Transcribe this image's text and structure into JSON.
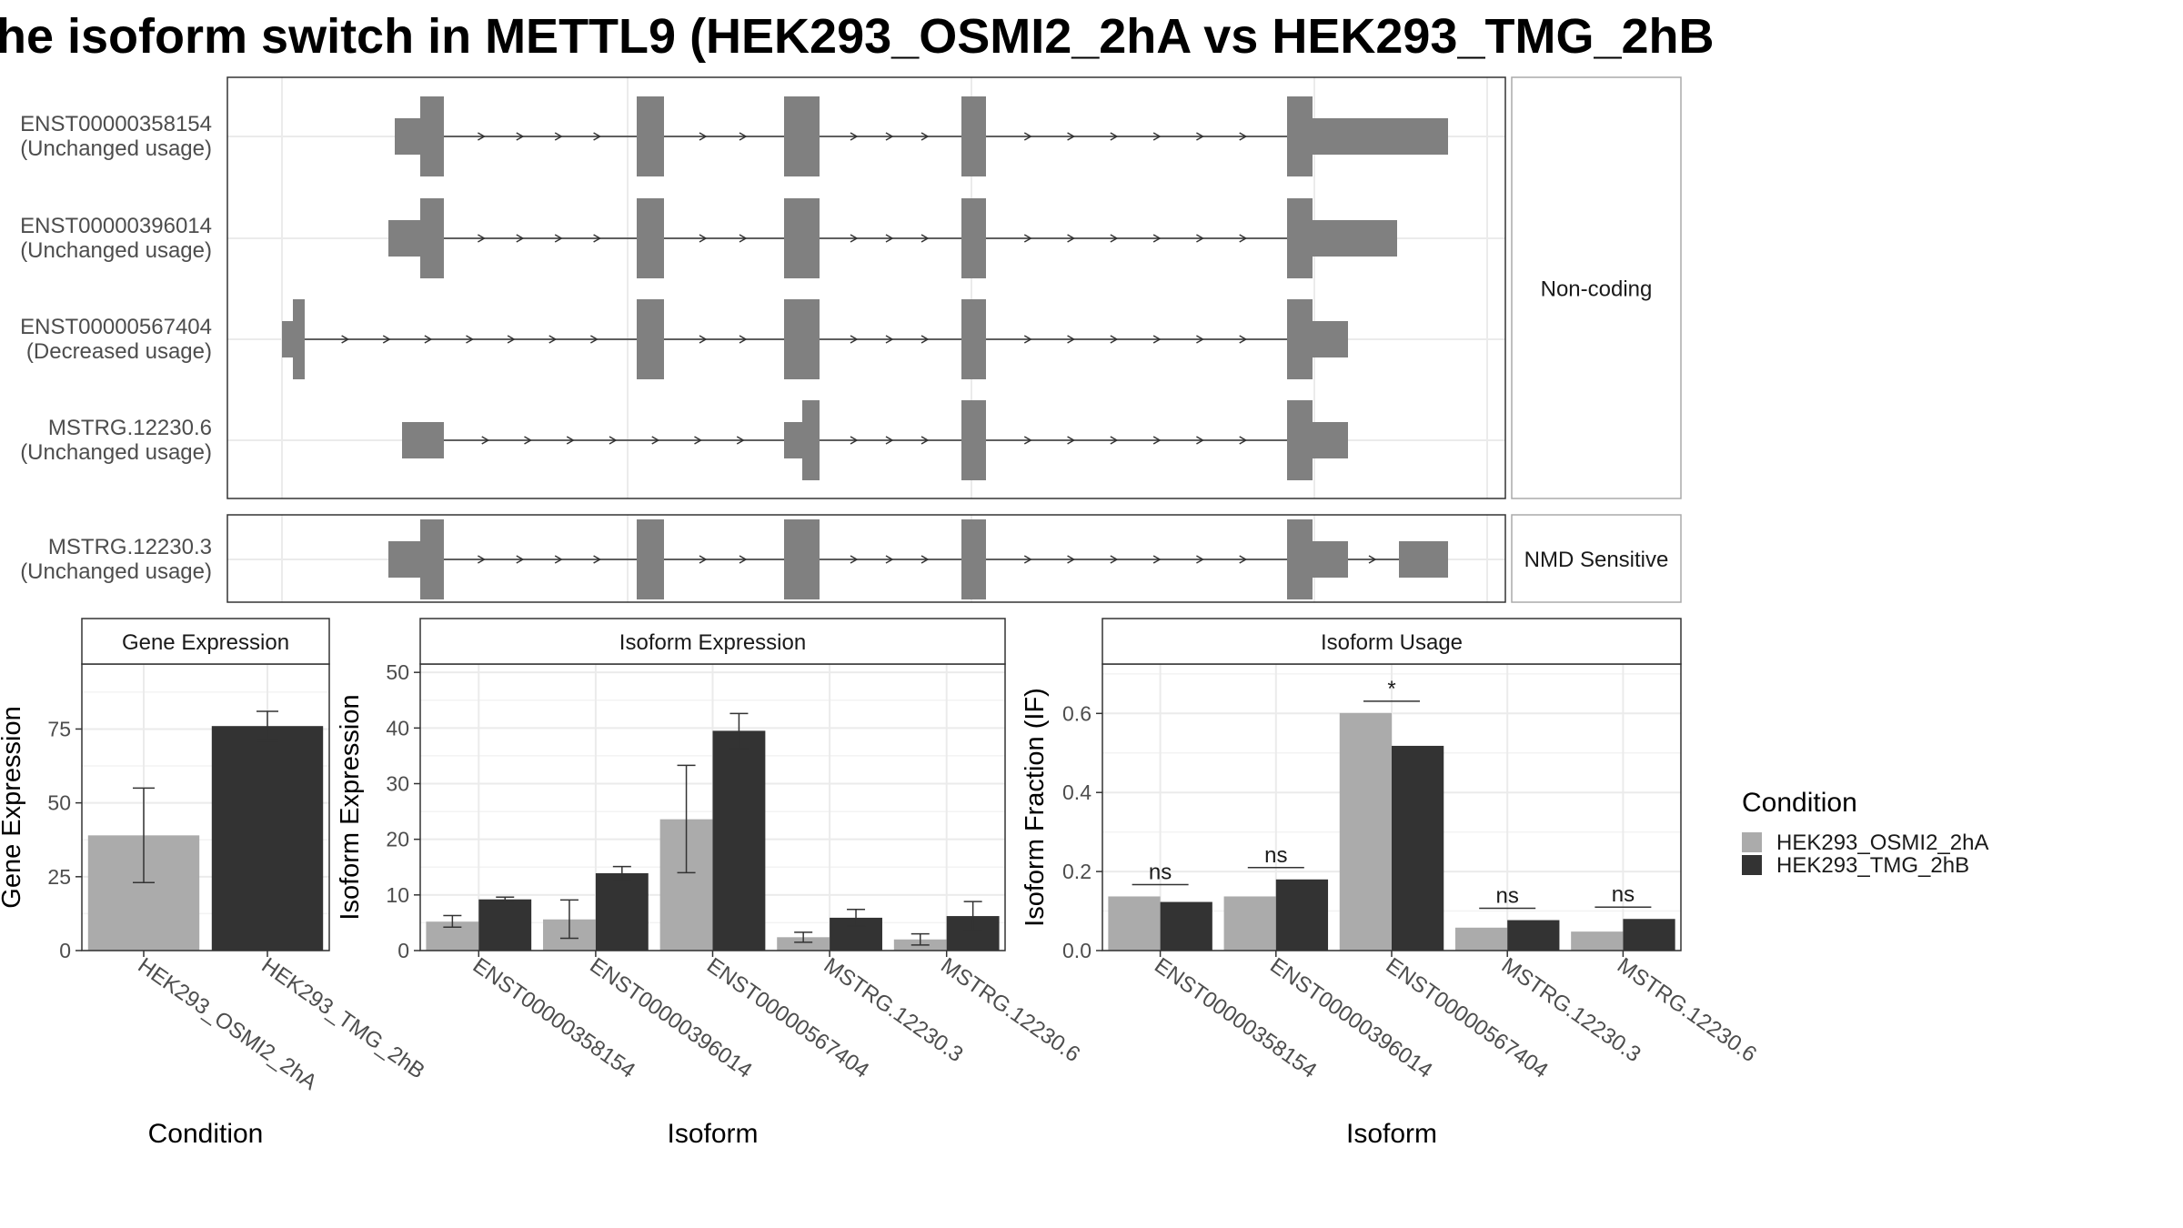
{
  "title": "he isoform switch in METTL9 (HEK293_OSMI2_2hA vs HEK293_TMG_2hB",
  "structure": {
    "facets": [
      "Non-coding",
      "NMD Sensitive"
    ],
    "transcripts": [
      {
        "id": "ENST00000358154",
        "usage": "(Unchanged usage)",
        "facet": 0
      },
      {
        "id": "ENST00000396014",
        "usage": "(Unchanged usage)",
        "facet": 0
      },
      {
        "id": "ENST00000567404",
        "usage": "(Decreased usage)",
        "facet": 0
      },
      {
        "id": "MSTRG.12230.6",
        "usage": "(Unchanged usage)",
        "facet": 0
      },
      {
        "id": "MSTRG.12230.3",
        "usage": "(Unchanged usage)",
        "facet": 1
      }
    ]
  },
  "chart_data": [
    {
      "type": "bar",
      "title": "Gene Expression",
      "xlabel": "Condition",
      "ylabel": "Gene Expression",
      "ylim": [
        0,
        97
      ],
      "yticks": [
        0,
        25,
        50,
        75
      ],
      "categories": [
        "HEK293_OSMI2_2hA",
        "HEK293_TMG_2hB"
      ],
      "values": [
        39,
        76
      ],
      "error_low": [
        23,
        71
      ],
      "error_high": [
        55,
        81
      ]
    },
    {
      "type": "bar",
      "title": "Isoform Expression",
      "xlabel": "Isoform",
      "ylabel": "Isoform Expression",
      "ylim": [
        0,
        51.5
      ],
      "yticks": [
        0,
        10,
        20,
        30,
        40,
        50
      ],
      "categories": [
        "ENST00000358154",
        "ENST00000396014",
        "ENST00000567404",
        "MSTRG.12230.3",
        "MSTRG.12230.6"
      ],
      "series": [
        {
          "name": "HEK293_OSMI2_2hA",
          "values": [
            5.2,
            5.6,
            23.6,
            2.4,
            2.0
          ],
          "error_low": [
            4.2,
            2.2,
            14.0,
            1.5,
            1.0
          ],
          "error_high": [
            6.3,
            9.1,
            33.3,
            3.3,
            3.0
          ]
        },
        {
          "name": "HEK293_TMG_2hB",
          "values": [
            9.2,
            13.9,
            39.5,
            5.9,
            6.2
          ],
          "error_low": [
            8.8,
            12.6,
            36.3,
            4.4,
            3.6
          ],
          "error_high": [
            9.6,
            15.1,
            42.6,
            7.4,
            8.8
          ]
        }
      ]
    },
    {
      "type": "bar",
      "title": "Isoform Usage",
      "xlabel": "Isoform",
      "ylabel": "Isoform Fraction (IF)",
      "ylim": [
        0,
        0.725
      ],
      "yticks": [
        0.0,
        0.2,
        0.4,
        0.6
      ],
      "ytick_labels": [
        "0.0",
        "0.2",
        "0.4",
        "0.6"
      ],
      "categories": [
        "ENST00000358154",
        "ENST00000396014",
        "ENST00000567404",
        "MSTRG.12230.3",
        "MSTRG.12230.6"
      ],
      "series": [
        {
          "name": "HEK293_OSMI2_2hA",
          "values": [
            0.137,
            0.137,
            0.601,
            0.058,
            0.048
          ]
        },
        {
          "name": "HEK293_TMG_2hB",
          "values": [
            0.123,
            0.18,
            0.518,
            0.077,
            0.08
          ]
        }
      ],
      "significance": [
        "ns",
        "ns",
        "*",
        "ns",
        "ns"
      ]
    }
  ],
  "legend": {
    "title": "Condition",
    "entries": [
      {
        "label": "HEK293_OSMI2_2hA",
        "color": "#ababab"
      },
      {
        "label": "HEK293_TMG_2hB",
        "color": "#333333"
      }
    ]
  },
  "colors": {
    "exon": "#808080",
    "cond_a": "#ababab",
    "cond_b": "#333333"
  }
}
